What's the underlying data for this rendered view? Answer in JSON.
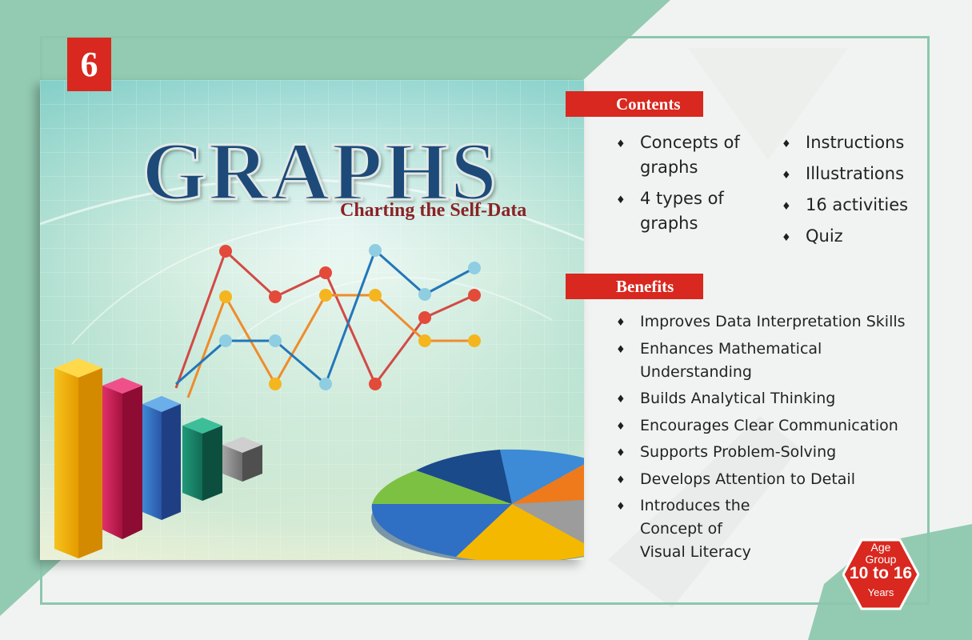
{
  "book": {
    "number": "6",
    "title": "GRAPHS",
    "subtitle": "Charting the Self-Data"
  },
  "contents": {
    "heading": "Contents",
    "col1": [
      "Concepts of graphs",
      "4 types of graphs"
    ],
    "col2": [
      "Instructions",
      "Illustrations",
      "16 activities",
      "Quiz"
    ]
  },
  "benefits": {
    "heading": "Benefits",
    "items": [
      "Improves Data Interpretation Skills",
      "Enhances Mathematical Understanding",
      "Builds Analytical Thinking",
      "Encourages Clear Communication",
      "Supports Problem-Solving",
      "Develops Attention to Detail",
      "Introduces the Concept of Visual Literacy"
    ]
  },
  "age_badge": {
    "label1": "Age",
    "label2": "Group",
    "range": "10 to 16",
    "unit": "Years"
  },
  "colors": {
    "accent_red": "#d8281f",
    "mint": "#8cc7ad",
    "title_blue": "#1d4a78"
  }
}
